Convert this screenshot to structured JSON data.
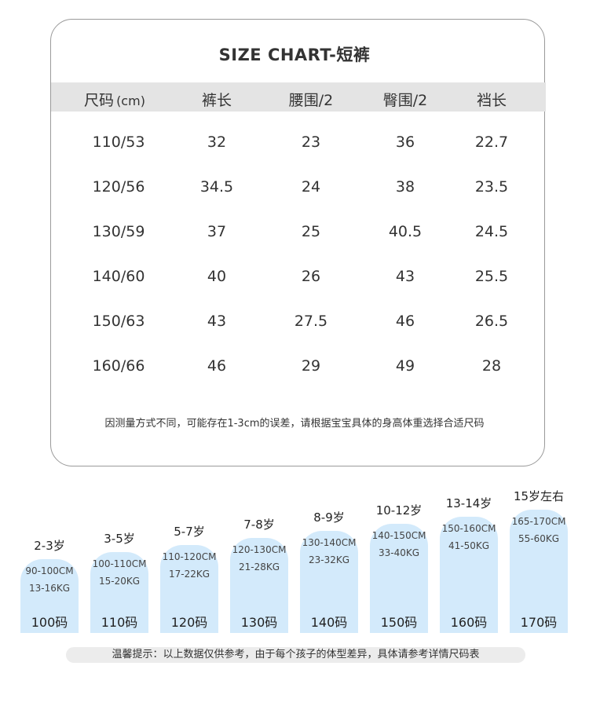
{
  "chart": {
    "title": "SIZE CHART-短裤",
    "headers": [
      {
        "label": "尺码",
        "unit": "(cm)"
      },
      {
        "label": "裤长",
        "unit": ""
      },
      {
        "label": "腰围/2",
        "unit": ""
      },
      {
        "label": "臀围/2",
        "unit": ""
      },
      {
        "label": "裆长",
        "unit": ""
      }
    ],
    "rows": [
      [
        "110/53",
        "32",
        "23",
        "36",
        "22.7"
      ],
      [
        "120/56",
        "34.5",
        "24",
        "38",
        "23.5"
      ],
      [
        "130/59",
        "37",
        "25",
        "40.5",
        "24.5"
      ],
      [
        "140/60",
        "40",
        "26",
        "43",
        "25.5"
      ],
      [
        "150/63",
        "43",
        "27.5",
        "46",
        "26.5"
      ],
      [
        "160/66",
        "46",
        "29",
        "49",
        "28"
      ]
    ],
    "note": "因测量方式不同，可能存在1-3cm的误差，请根据宝宝具体的身高体重选择合适尺码"
  },
  "size_guide": [
    {
      "age": "2-3岁",
      "height": "90-100CM",
      "weight": "13-16KG",
      "code": "100码"
    },
    {
      "age": "3-5岁",
      "height": "100-110CM",
      "weight": "15-20KG",
      "code": "110码"
    },
    {
      "age": "5-7岁",
      "height": "110-120CM",
      "weight": "17-22KG",
      "code": "120码"
    },
    {
      "age": "7-8岁",
      "height": "120-130CM",
      "weight": "21-28KG",
      "code": "130码"
    },
    {
      "age": "8-9岁",
      "height": "130-140CM",
      "weight": "23-32KG",
      "code": "140码"
    },
    {
      "age": "10-12岁",
      "height": "140-150CM",
      "weight": "33-40KG",
      "code": "150码"
    },
    {
      "age": "13-14岁",
      "height": "150-160CM",
      "weight": "41-50KG",
      "code": "160码"
    },
    {
      "age": "15岁左右",
      "height": "165-170CM",
      "weight": "55-60KG",
      "code": "170码"
    }
  ],
  "tip": "温馨提示：以上数据仅供参考，由于每个孩子的体型差异，具体请参考详情尺码表",
  "colors": {
    "tab_fill": "#d3eafb",
    "header_fill": "#e4e4e4",
    "card_border": "#9a9a9a"
  }
}
